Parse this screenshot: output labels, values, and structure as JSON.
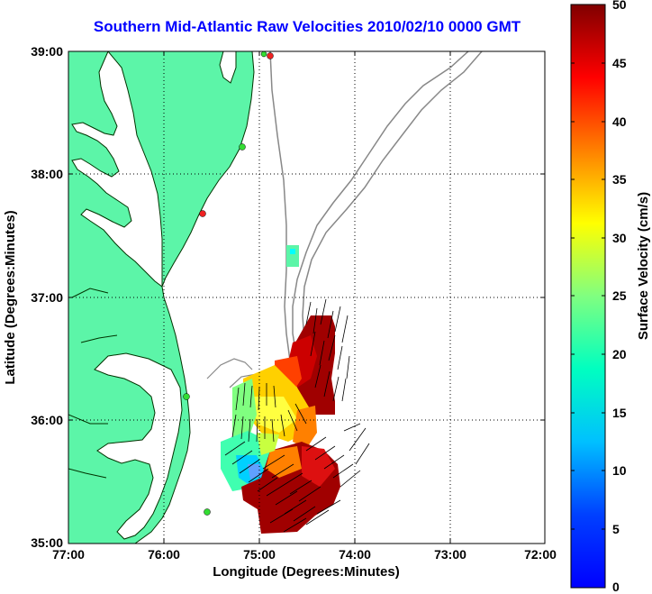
{
  "title": "Southern Mid-Atlantic Raw Velocities 2010/02/10 0000 GMT",
  "xlabel": "Longitude (Degrees:Minutes)",
  "ylabel": "Latitude (Degrees:Minutes)",
  "xticks": [
    "77:00",
    "76:00",
    "75:00",
    "74:00",
    "73:00",
    "72:00"
  ],
  "yticks": [
    "39:00",
    "38:00",
    "37:00",
    "36:00",
    "35:00"
  ],
  "colorbar": {
    "label": "Surface Velocity (cm/s)",
    "ticks": [
      "50",
      "45",
      "40",
      "35",
      "30",
      "25",
      "20",
      "15",
      "10",
      "5",
      "0"
    ],
    "min": 0,
    "max": 50,
    "colormap": "jet"
  },
  "colors": {
    "land": "#5cf5a8",
    "title": "#0000ff",
    "bathymetry": "#888888",
    "station_active": "#33dd33",
    "station_inactive": "#ee2222"
  },
  "map_extent": {
    "lon": [
      -77,
      -72
    ],
    "lat": [
      35,
      39
    ]
  }
}
